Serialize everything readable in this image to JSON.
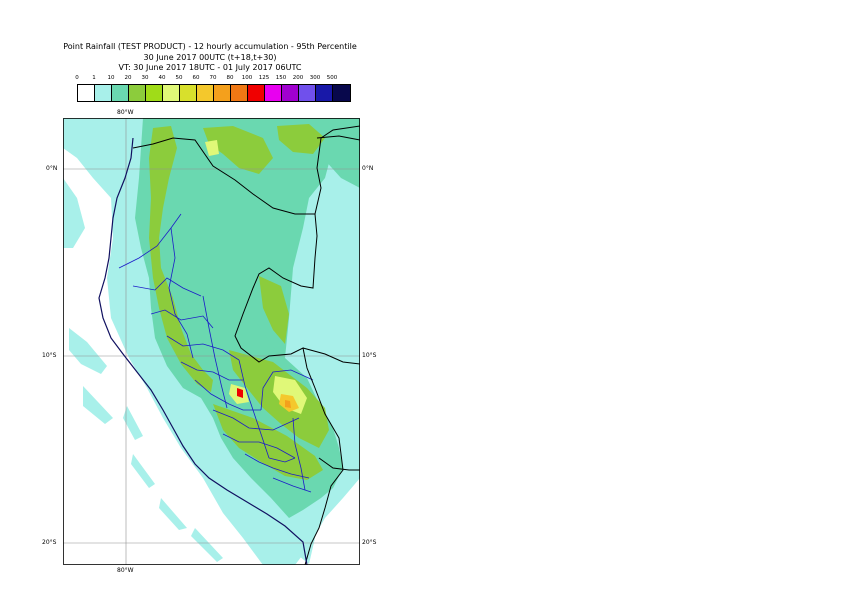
{
  "title": {
    "line1": "Point Rainfall (TEST PRODUCT) - 12 hourly accumulation - 95th Percentile",
    "line2": "30 June 2017 00UTC (t+18,t+30)",
    "line3": "VT: 30 June 2017 18UTC - 01 July 2017 06UTC"
  },
  "legend": {
    "labels": [
      "0",
      "1",
      "10",
      "20",
      "30",
      "40",
      "50",
      "60",
      "70",
      "80",
      "100",
      "125",
      "150",
      "200",
      "300",
      "500"
    ],
    "colors": [
      "#ffffff",
      "#a8f0ea",
      "#6ad8b0",
      "#8ccc3c",
      "#a0dc18",
      "#e0f878",
      "#d8e02c",
      "#f4c82c",
      "#f4a01c",
      "#f07814",
      "#f00000",
      "#e800f0",
      "#a000d0",
      "#7050ec",
      "#1818a8",
      "#08084c"
    ]
  },
  "map": {
    "axis_labels": {
      "lon_top": "80°W",
      "lon_bottom": "80°W",
      "lat_0_left": "0°N",
      "lat_0_right": "0°N",
      "lat_10_left": "10°S",
      "lat_10_right": "10°S",
      "lat_20_left": "20°S",
      "lat_20_right": "20°S"
    },
    "colors": {
      "background": "#ffffff",
      "cyan": "#a8f0ea",
      "teal": "#6ad8b0",
      "green": "#8ccc3c",
      "yellow": "#e0f878",
      "orange": "#f4c82c",
      "red": "#f00000",
      "border": "#000000",
      "admin": "#1c1cc8",
      "coast": "#101060",
      "grid": "#909090"
    }
  }
}
